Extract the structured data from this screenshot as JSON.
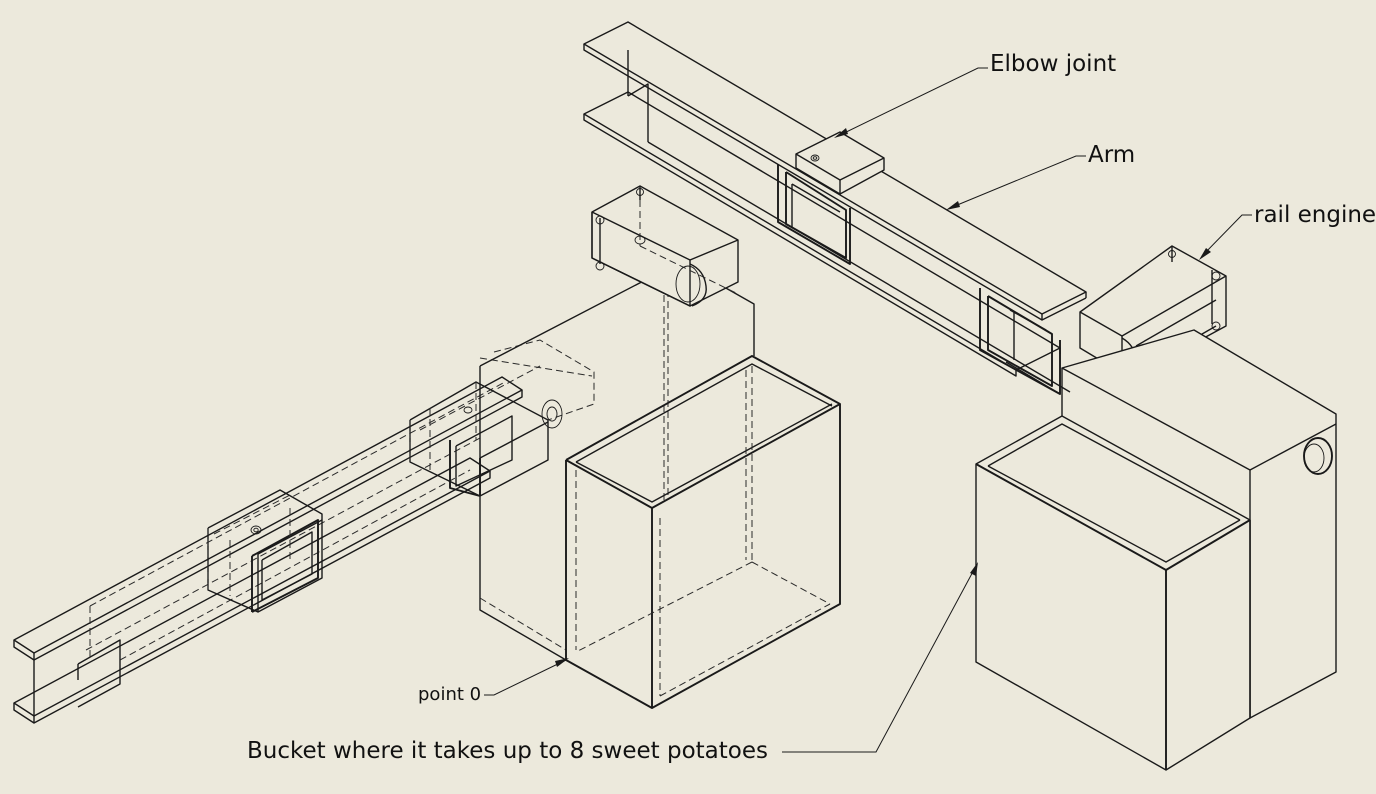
{
  "labels": {
    "elbow_joint": "Elbow joint",
    "arm": "Arm",
    "rail_engine": "rail engine",
    "point_0": "point 0",
    "bucket": "Bucket where it takes up to 8 sweet potatoes"
  }
}
